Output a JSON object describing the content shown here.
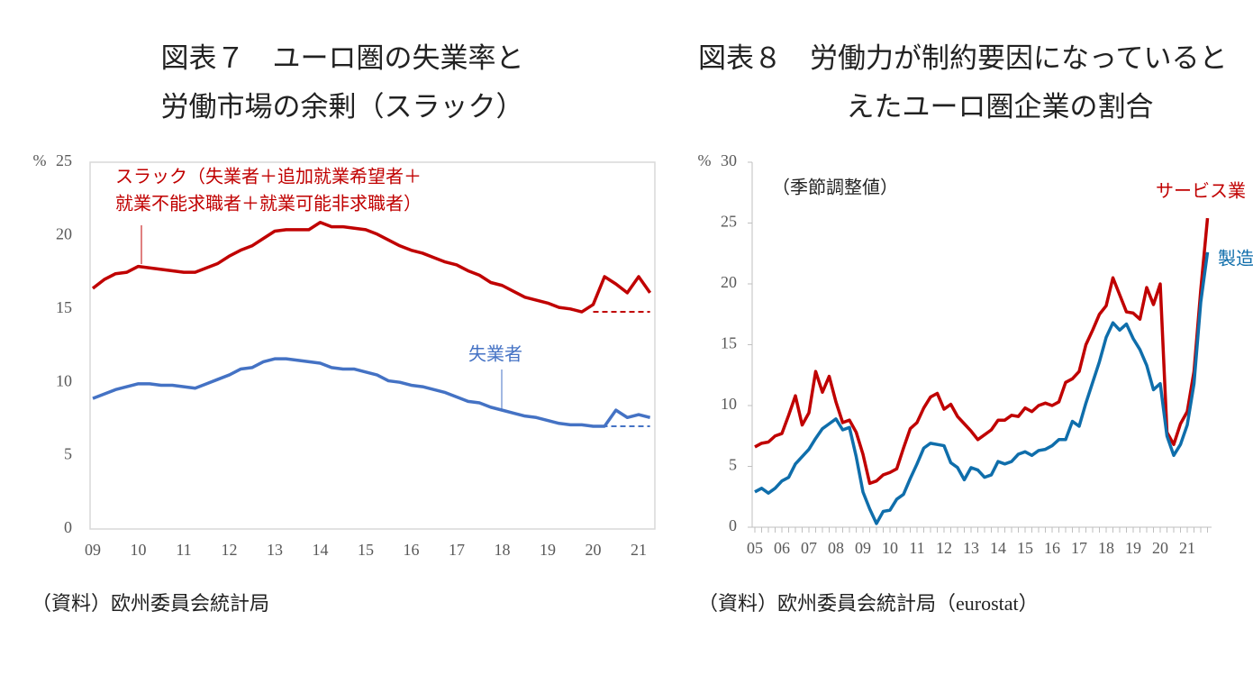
{
  "chart_data": [
    {
      "type": "line",
      "title": [
        "図表７　ユーロ圏の失業率と",
        "労働市場の余剰（スラック）"
      ],
      "ylabel": "%",
      "source": "（資料）欧州委員会統計局",
      "frame": true,
      "ylim": [
        0,
        25
      ],
      "yticks": [
        0,
        5,
        10,
        15,
        20,
        25
      ],
      "categories": [
        "09",
        null,
        null,
        null,
        "10",
        null,
        null,
        null,
        "11",
        null,
        null,
        null,
        "12",
        null,
        null,
        null,
        "13",
        null,
        null,
        null,
        "14",
        null,
        null,
        null,
        "15",
        null,
        null,
        null,
        "16",
        null,
        null,
        null,
        "17",
        null,
        null,
        null,
        "18",
        null,
        null,
        null,
        "19",
        null,
        null,
        null,
        "20",
        null,
        null,
        null,
        "21",
        null
      ],
      "series": [
        {
          "label": [
            "スラック（失業者＋追加就業希望者＋",
            "就業不能求職者＋就業可能非求職者）"
          ],
          "color": "#c00000",
          "values": [
            16.4,
            17.0,
            17.4,
            17.5,
            17.9,
            17.8,
            17.7,
            17.6,
            17.5,
            17.5,
            17.8,
            18.1,
            18.6,
            19.0,
            19.3,
            19.8,
            20.3,
            20.4,
            20.4,
            20.4,
            20.9,
            20.6,
            20.6,
            20.5,
            20.4,
            20.1,
            19.7,
            19.3,
            19.0,
            18.8,
            18.5,
            18.2,
            18.0,
            17.6,
            17.3,
            16.8,
            16.6,
            16.2,
            15.8,
            15.6,
            15.4,
            15.1,
            15.0,
            14.8,
            15.3,
            17.2,
            16.7,
            16.1,
            17.2,
            16.1
          ]
        },
        {
          "label": [
            "失業者"
          ],
          "color": "#4472c4",
          "values": [
            8.9,
            9.2,
            9.5,
            9.7,
            9.9,
            9.9,
            9.8,
            9.8,
            9.7,
            9.6,
            9.9,
            10.2,
            10.5,
            10.9,
            11.0,
            11.4,
            11.6,
            11.6,
            11.5,
            11.4,
            11.3,
            11.0,
            10.9,
            10.9,
            10.7,
            10.5,
            10.1,
            10.0,
            9.8,
            9.7,
            9.5,
            9.3,
            9.0,
            8.7,
            8.6,
            8.3,
            8.1,
            7.9,
            7.7,
            7.6,
            7.4,
            7.2,
            7.1,
            7.1,
            7.0,
            7.0,
            8.1,
            7.6,
            7.8,
            7.6
          ]
        },
        {
          "color": "#c00000",
          "dash": true,
          "values": [
            null,
            null,
            null,
            null,
            null,
            null,
            null,
            null,
            null,
            null,
            null,
            null,
            null,
            null,
            null,
            null,
            null,
            null,
            null,
            null,
            null,
            null,
            null,
            null,
            null,
            null,
            null,
            null,
            null,
            null,
            null,
            null,
            null,
            null,
            null,
            null,
            null,
            null,
            null,
            null,
            null,
            null,
            null,
            null,
            14.8,
            14.8,
            14.8,
            14.8,
            14.8,
            14.8
          ]
        },
        {
          "color": "#4472c4",
          "dash": true,
          "values": [
            null,
            null,
            null,
            null,
            null,
            null,
            null,
            null,
            null,
            null,
            null,
            null,
            null,
            null,
            null,
            null,
            null,
            null,
            null,
            null,
            null,
            null,
            null,
            null,
            null,
            null,
            null,
            null,
            null,
            null,
            null,
            null,
            null,
            null,
            null,
            null,
            null,
            null,
            null,
            null,
            null,
            null,
            null,
            null,
            7.0,
            7.0,
            7.0,
            7.0,
            7.0,
            7.0
          ]
        }
      ]
    },
    {
      "type": "line",
      "title": [
        "図表８　労働力が制約要因になっていると",
        "えたユーロ圏企業の割合"
      ],
      "subtitle": "（季節調整値）",
      "ylabel": "%",
      "source": "（資料）欧州委員会統計局（eurostat）",
      "frame": false,
      "ylim": [
        0,
        30
      ],
      "yticks": [
        0,
        5,
        10,
        15,
        20,
        25,
        30
      ],
      "categories": [
        "05",
        null,
        null,
        null,
        "06",
        null,
        null,
        null,
        "07",
        null,
        null,
        null,
        "08",
        null,
        null,
        null,
        "09",
        null,
        null,
        null,
        "10",
        null,
        null,
        null,
        "11",
        null,
        null,
        null,
        "12",
        null,
        null,
        null,
        "13",
        null,
        null,
        null,
        "14",
        null,
        null,
        null,
        "15",
        null,
        null,
        null,
        "16",
        null,
        null,
        null,
        "17",
        null,
        null,
        null,
        "18",
        null,
        null,
        null,
        "19",
        null,
        null,
        null,
        "20",
        null,
        null,
        null,
        "21",
        null,
        null,
        null
      ],
      "series": [
        {
          "label": [
            "サービス業"
          ],
          "color": "#c00000",
          "values": [
            6.6,
            6.9,
            7.0,
            7.5,
            7.7,
            9.2,
            10.8,
            8.4,
            9.4,
            12.8,
            11.1,
            12.4,
            10.3,
            8.6,
            8.8,
            7.8,
            6.0,
            3.6,
            3.8,
            4.3,
            4.5,
            4.8,
            6.5,
            8.1,
            8.6,
            9.8,
            10.7,
            11.0,
            9.7,
            10.1,
            9.1,
            8.5,
            7.9,
            7.2,
            7.6,
            8.0,
            8.8,
            8.8,
            9.2,
            9.1,
            9.8,
            9.5,
            10.0,
            10.2,
            10.0,
            10.3,
            11.9,
            12.2,
            12.8,
            15.0,
            16.2,
            17.5,
            18.2,
            20.5,
            19.1,
            17.7,
            17.6,
            17.1,
            19.7,
            18.3,
            20.0,
            7.8,
            6.8,
            8.5,
            9.5,
            12.8,
            19.5,
            25.4
          ]
        },
        {
          "label": [
            "製造業"
          ],
          "color": "#0f6eab",
          "values": [
            2.9,
            3.2,
            2.8,
            3.2,
            3.8,
            4.1,
            5.2,
            5.8,
            6.4,
            7.3,
            8.1,
            8.5,
            8.9,
            8.0,
            8.2,
            5.8,
            2.9,
            1.5,
            0.3,
            1.3,
            1.4,
            2.3,
            2.7,
            4.0,
            5.2,
            6.5,
            6.9,
            6.8,
            6.7,
            5.3,
            4.9,
            3.9,
            4.9,
            4.7,
            4.1,
            4.3,
            5.4,
            5.2,
            5.4,
            6.0,
            6.2,
            5.9,
            6.3,
            6.4,
            6.7,
            7.2,
            7.2,
            8.7,
            8.3,
            10.2,
            11.9,
            13.6,
            15.6,
            16.8,
            16.2,
            16.7,
            15.5,
            14.6,
            13.3,
            11.3,
            11.8,
            7.5,
            5.9,
            6.8,
            8.4,
            11.8,
            18.5,
            22.6
          ]
        }
      ]
    }
  ]
}
